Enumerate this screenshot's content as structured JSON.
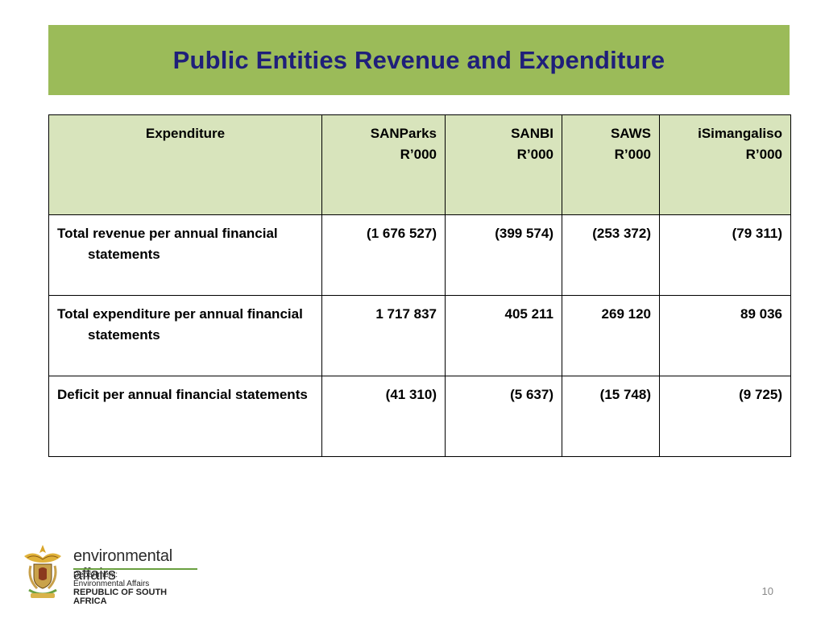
{
  "slide": {
    "title": "Public Entities Revenue and Expenditure",
    "page_number": "10"
  },
  "table": {
    "header": {
      "label": "Expenditure",
      "columns": [
        {
          "name": "SANParks",
          "unit": "R’000"
        },
        {
          "name": "SANBI",
          "unit": "R’000"
        },
        {
          "name": "SAWS",
          "unit": "R’000"
        },
        {
          "name": "iSimangaliso",
          "unit": "R’000"
        }
      ]
    },
    "rows": [
      {
        "label": "Total revenue per annual financial statements",
        "values": [
          "(1 676 527)",
          "(399 574)",
          "(253 372)",
          "(79 311)"
        ]
      },
      {
        "label": "Total expenditure per annual financial statements",
        "values": [
          "1 717 837",
          "405 211",
          "269 120",
          "89 036"
        ]
      },
      {
        "label": "Deficit per annual financial statements",
        "values": [
          "(41 310)",
          "(5 637)",
          "(15 748)",
          "(9 725)"
        ]
      }
    ]
  },
  "footer": {
    "brand_name": "environmental affairs",
    "line1": "Department:",
    "line2": "Environmental Affairs",
    "line3": "REPUBLIC OF SOUTH AFRICA",
    "crest_icon": "coat-of-arms-icon"
  },
  "colors": {
    "title_bar": "#9bbb59",
    "title_text": "#1f1f7a",
    "header_fill": "#d8e4bc"
  }
}
